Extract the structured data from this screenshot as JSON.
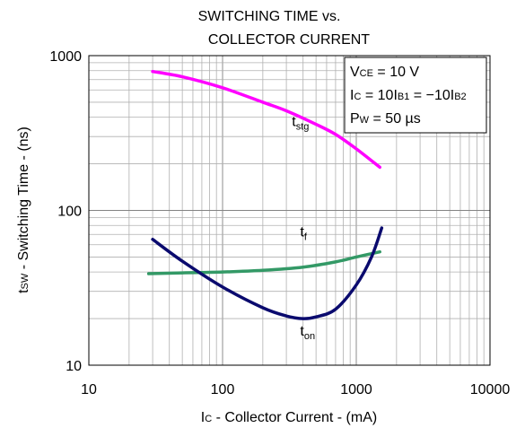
{
  "chart_data": {
    "type": "line",
    "title_line1": "SWITCHING TIME vs.",
    "title_line2": "COLLECTOR CURRENT",
    "xlabel": {
      "main": "I",
      "sub": "C",
      "rest": " - Collector Current - (mA)"
    },
    "ylabel": {
      "main": "t",
      "sub": "SW",
      "rest": " - Switching Time - (ns)"
    },
    "x_scale": "log",
    "y_scale": "log",
    "xlim": [
      10,
      10000
    ],
    "ylim": [
      10,
      1000
    ],
    "x_ticks": [
      {
        "value": 10,
        "label": "10"
      },
      {
        "value": 100,
        "label": "100"
      },
      {
        "value": 1000,
        "label": "1000"
      },
      {
        "value": 10000,
        "label": "10000"
      }
    ],
    "y_ticks": [
      {
        "value": 10,
        "label": "10"
      },
      {
        "value": 100,
        "label": "100"
      },
      {
        "value": 1000,
        "label": "1000"
      }
    ],
    "grid": true,
    "conditions": {
      "line1": {
        "main": "V",
        "sub": "CE",
        "rest": " = 10 V"
      },
      "line2": {
        "a": "I",
        "a_sub": "C",
        "b": " = 10I",
        "b_sub": "B1",
        "c": " = −10I",
        "c_sub": "B2"
      },
      "line3": {
        "main": "P",
        "sub": "W",
        "rest": " = 50 µs"
      }
    },
    "series": [
      {
        "label_main": "t",
        "label_sub": "stg",
        "label_at": [
          330,
          350
        ],
        "color": "#ff00ff",
        "points": [
          [
            30,
            790
          ],
          [
            50,
            730
          ],
          [
            100,
            620
          ],
          [
            200,
            500
          ],
          [
            300,
            440
          ],
          [
            500,
            360
          ],
          [
            700,
            310
          ],
          [
            1000,
            250
          ],
          [
            1500,
            190
          ]
        ]
      },
      {
        "label_main": "t",
        "label_sub": "f",
        "label_at": [
          380,
          68
        ],
        "color": "#339966",
        "points": [
          [
            28,
            39
          ],
          [
            50,
            39.5
          ],
          [
            100,
            40
          ],
          [
            200,
            41
          ],
          [
            400,
            43
          ],
          [
            700,
            46.5
          ],
          [
            1000,
            50
          ],
          [
            1500,
            54
          ]
        ]
      },
      {
        "label_main": "t",
        "label_sub": "on",
        "label_at": [
          380,
          15.5
        ],
        "color": "#0a0a6e",
        "points": [
          [
            30,
            65
          ],
          [
            50,
            47
          ],
          [
            100,
            32
          ],
          [
            200,
            23.5
          ],
          [
            300,
            20.8
          ],
          [
            400,
            20
          ],
          [
            500,
            20.5
          ],
          [
            700,
            23
          ],
          [
            1000,
            33
          ],
          [
            1300,
            50
          ],
          [
            1550,
            77
          ]
        ]
      }
    ]
  }
}
